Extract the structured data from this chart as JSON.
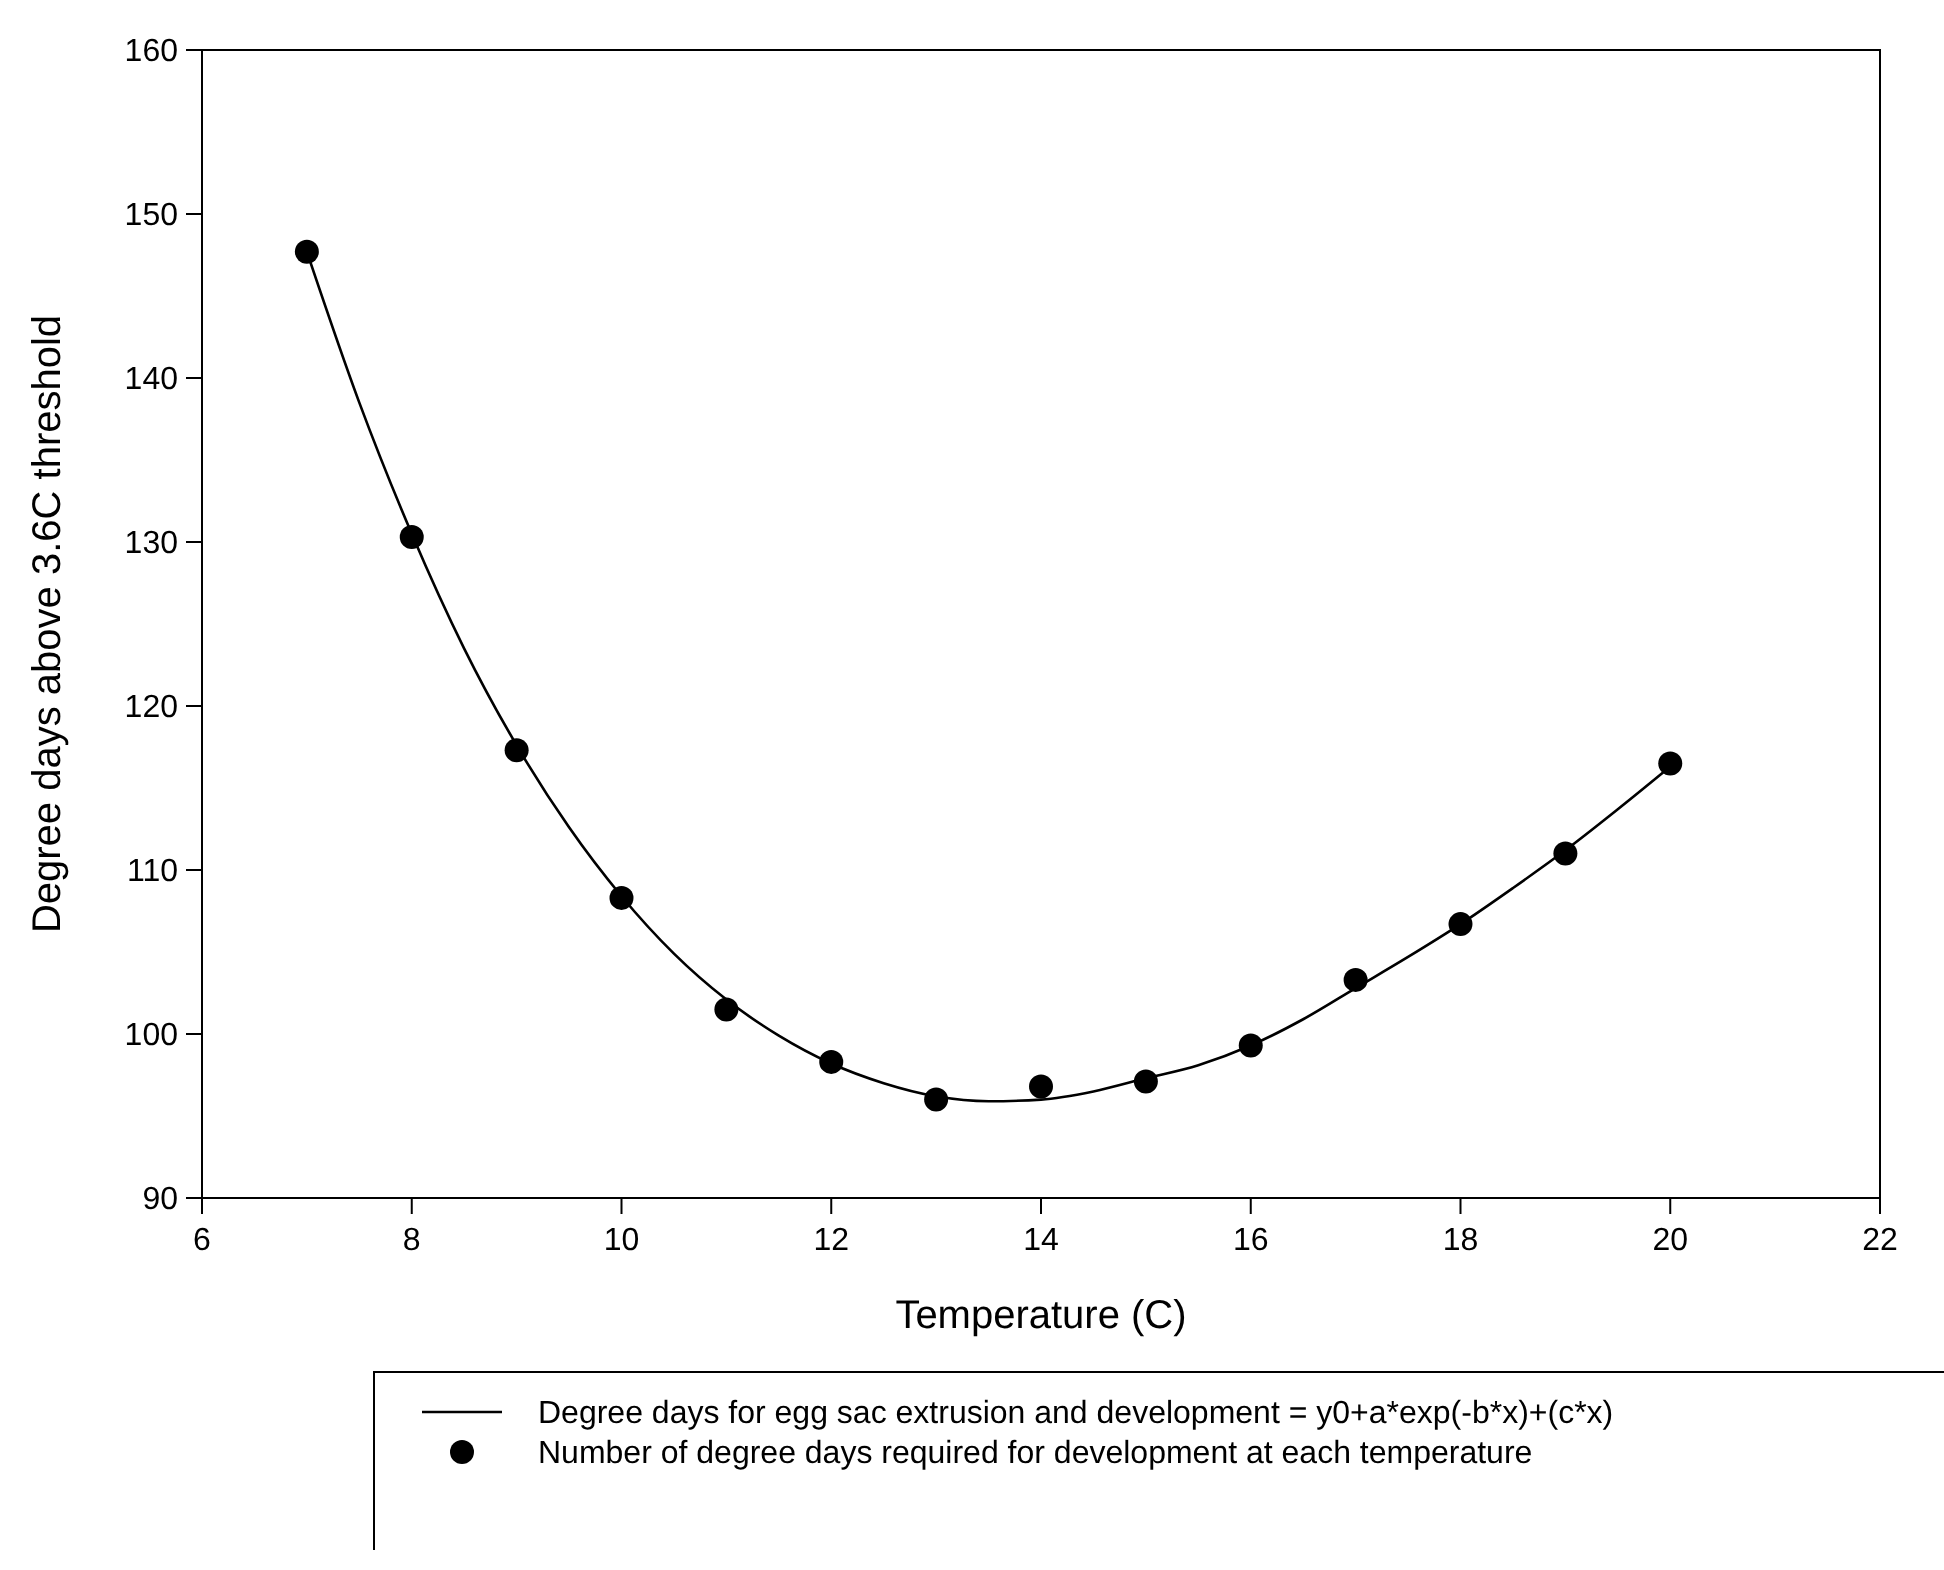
{
  "chart_data": {
    "type": "scatter",
    "xlabel": "Temperature (C)",
    "ylabel": "Degree days above 3.6C threshold",
    "xlim": [
      6,
      22
    ],
    "xticks": [
      6,
      8,
      10,
      12,
      14,
      16,
      18,
      20,
      22
    ],
    "ylim": [
      90,
      160
    ],
    "yticks": [
      90,
      100,
      110,
      120,
      130,
      140,
      150,
      160
    ],
    "grid": false,
    "legend": "bottom",
    "series": [
      {
        "name": "Degree days for egg sac extrusion and development = y0+a*exp(-b*x)+(c*x)",
        "type": "line",
        "color": "#000000",
        "marker": "none",
        "line_style": "solid",
        "x": [
          7,
          7.5,
          8,
          8.5,
          9,
          9.5,
          10,
          10.5,
          11,
          11.5,
          12,
          12.5,
          13,
          13.5,
          14,
          14.5,
          15,
          15.5,
          16,
          16.5,
          17,
          17.5,
          18,
          18.5,
          19,
          19.5,
          20
        ],
        "values": [
          147.7,
          138.5,
          130.5,
          123.5,
          117.6,
          112.6,
          108.4,
          104.9,
          102.1,
          99.9,
          98.2,
          97.0,
          96.2,
          95.9,
          96.0,
          96.5,
          97.3,
          98.1,
          99.3,
          100.9,
          102.8,
          104.7,
          106.7,
          108.9,
          111.2,
          113.7,
          116.3
        ]
      },
      {
        "name": "Number of degree days required for development at each temperature",
        "color": "#000000",
        "marker": "circle",
        "x": [
          7,
          8,
          9,
          10,
          11,
          12,
          13,
          14,
          15,
          16,
          17,
          18,
          19,
          20
        ],
        "values": [
          147.7,
          130.3,
          117.3,
          108.3,
          101.5,
          98.3,
          96.0,
          96.8,
          97.1,
          99.3,
          103.3,
          106.7,
          111.0,
          116.5
        ]
      }
    ]
  }
}
